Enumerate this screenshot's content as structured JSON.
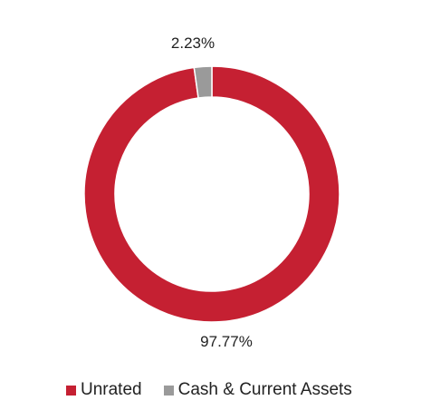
{
  "chart_data": {
    "type": "pie",
    "variant": "donut",
    "title": "",
    "categories": [
      "Unrated",
      "Cash & Current Assets"
    ],
    "values": [
      97.77,
      2.23
    ],
    "labels": [
      "97.77%",
      "2.23%"
    ],
    "colors": [
      "#c52032",
      "#9a9a9a"
    ],
    "legend_position": "bottom"
  },
  "legend": {
    "items": [
      {
        "label": "Unrated",
        "color": "#c52032"
      },
      {
        "label": "Cash & Current Assets",
        "color": "#9a9a9a"
      }
    ]
  }
}
